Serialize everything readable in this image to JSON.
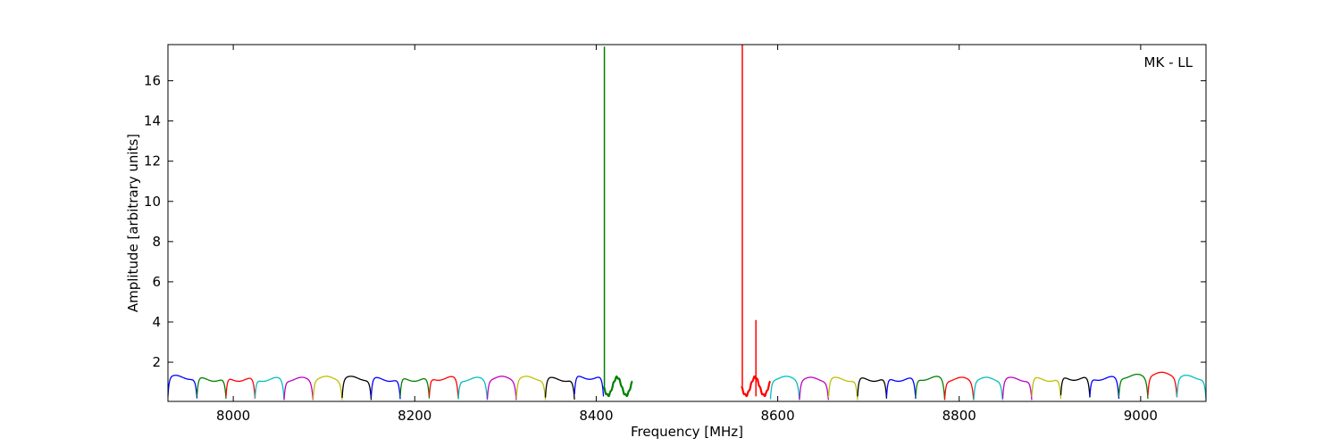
{
  "chart_data": {
    "type": "line",
    "title": "",
    "annotation": "MK - LL",
    "xlabel": "Frequency [MHz]",
    "ylabel": "Amplitude [arbitrary units]",
    "xlim": [
      7928,
      9072
    ],
    "ylim": [
      0.05,
      17.8
    ],
    "xticks": [
      8000,
      8200,
      8400,
      8600,
      8800,
      9000
    ],
    "yticks": [
      2,
      4,
      6,
      8,
      10,
      12,
      14,
      16
    ],
    "grid": false,
    "legend": "none",
    "band_width": 32,
    "palette": [
      "#0000ff",
      "#008000",
      "#ff0000",
      "#00bfbf",
      "#bf00bf",
      "#bfbf00",
      "#000000"
    ],
    "bands": [
      {
        "start": 7928,
        "color": "#0000ff",
        "level": 1.25,
        "kind": "normal"
      },
      {
        "start": 7960,
        "color": "#008000",
        "level": 1.15,
        "kind": "normal"
      },
      {
        "start": 7992,
        "color": "#ff0000",
        "level": 1.15,
        "kind": "normal"
      },
      {
        "start": 8024,
        "color": "#00bfbf",
        "level": 1.15,
        "kind": "normal"
      },
      {
        "start": 8056,
        "color": "#bf00bf",
        "level": 1.15,
        "kind": "normal"
      },
      {
        "start": 8088,
        "color": "#bfbf00",
        "level": 1.2,
        "kind": "normal"
      },
      {
        "start": 8120,
        "color": "#000000",
        "level": 1.2,
        "kind": "normal"
      },
      {
        "start": 8152,
        "color": "#0000ff",
        "level": 1.15,
        "kind": "normal"
      },
      {
        "start": 8184,
        "color": "#008000",
        "level": 1.15,
        "kind": "normal"
      },
      {
        "start": 8216,
        "color": "#ff0000",
        "level": 1.2,
        "kind": "normal"
      },
      {
        "start": 8248,
        "color": "#00bfbf",
        "level": 1.15,
        "kind": "normal"
      },
      {
        "start": 8280,
        "color": "#bf00bf",
        "level": 1.2,
        "kind": "normal"
      },
      {
        "start": 8312,
        "color": "#bfbf00",
        "level": 1.2,
        "kind": "normal"
      },
      {
        "start": 8344,
        "color": "#000000",
        "level": 1.15,
        "kind": "normal"
      },
      {
        "start": 8376,
        "color": "#0000ff",
        "level": 1.25,
        "kind": "normal"
      },
      {
        "start": 8408,
        "color": "#008000",
        "level": 0.8,
        "kind": "ripple",
        "spike_x": 8409,
        "spike_y": 17.7
      },
      {
        "start": 8560,
        "color": "#ff0000",
        "level": 0.8,
        "kind": "ripple",
        "spike_x": 8561,
        "spike_y": 17.8,
        "spike2_x": 8576,
        "spike2_y": 4.1
      },
      {
        "start": 8592,
        "color": "#00bfbf",
        "level": 1.2,
        "kind": "normal"
      },
      {
        "start": 8624,
        "color": "#bf00bf",
        "level": 1.15,
        "kind": "normal"
      },
      {
        "start": 8656,
        "color": "#bfbf00",
        "level": 1.15,
        "kind": "normal"
      },
      {
        "start": 8688,
        "color": "#000000",
        "level": 1.15,
        "kind": "normal"
      },
      {
        "start": 8720,
        "color": "#0000ff",
        "level": 1.15,
        "kind": "normal"
      },
      {
        "start": 8752,
        "color": "#008000",
        "level": 1.2,
        "kind": "normal"
      },
      {
        "start": 8784,
        "color": "#ff0000",
        "level": 1.15,
        "kind": "normal"
      },
      {
        "start": 8816,
        "color": "#00bfbf",
        "level": 1.15,
        "kind": "normal"
      },
      {
        "start": 8848,
        "color": "#bf00bf",
        "level": 1.15,
        "kind": "normal"
      },
      {
        "start": 8880,
        "color": "#bfbf00",
        "level": 1.15,
        "kind": "normal"
      },
      {
        "start": 8912,
        "color": "#000000",
        "level": 1.2,
        "kind": "normal"
      },
      {
        "start": 8944,
        "color": "#0000ff",
        "level": 1.2,
        "kind": "normal"
      },
      {
        "start": 8976,
        "color": "#008000",
        "level": 1.3,
        "kind": "normal"
      },
      {
        "start": 9008,
        "color": "#ff0000",
        "level": 1.4,
        "kind": "normal"
      },
      {
        "start": 9040,
        "color": "#00bfbf",
        "level": 1.25,
        "kind": "normal"
      }
    ]
  }
}
